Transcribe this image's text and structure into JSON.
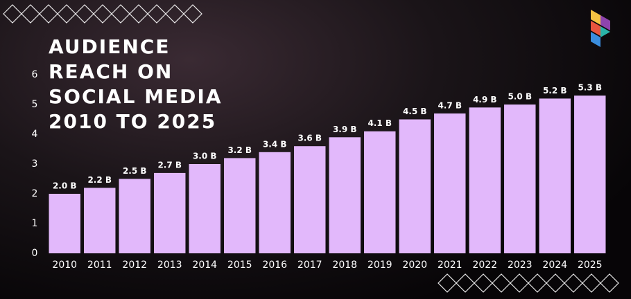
{
  "chart_data": {
    "type": "bar",
    "title": "AUDIENCE REACH ON SOCIAL MEDIA 2010 TO 2025",
    "categories": [
      "2010",
      "2011",
      "2012",
      "2013",
      "2014",
      "2015",
      "2016",
      "2017",
      "2018",
      "2019",
      "2020",
      "2021",
      "2022",
      "2023",
      "2024",
      "2025"
    ],
    "values": [
      2.0,
      2.2,
      2.5,
      2.7,
      3.0,
      3.2,
      3.4,
      3.6,
      3.9,
      4.1,
      4.5,
      4.7,
      4.9,
      5.0,
      5.2,
      5.3
    ],
    "value_labels": [
      "2.0 B",
      "2.2 B",
      "2.5 B",
      "2.7 B",
      "3.0 B",
      "3.2 B",
      "3.4 B",
      "3.6 B",
      "3.9 B",
      "4.1 B",
      "4.5 B",
      "4.7 B",
      "4.9 B",
      "5.0 B",
      "5.2 B",
      "5.3 B"
    ],
    "color": "#e2b8fb",
    "ylim": [
      0,
      6
    ],
    "yticks": [
      0,
      1,
      2,
      3,
      4,
      5,
      6
    ],
    "grid": false
  }
}
